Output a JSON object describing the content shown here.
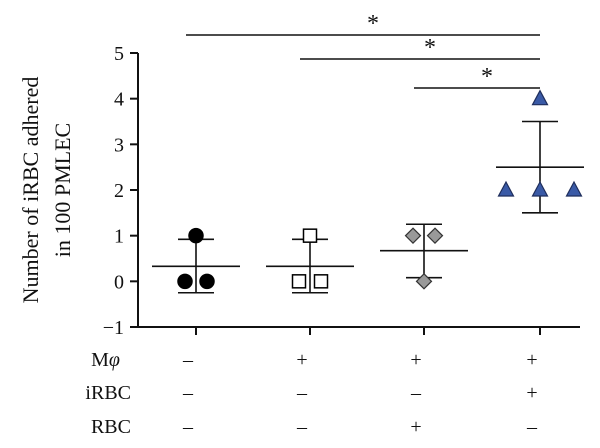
{
  "chart_data": {
    "type": "scatter",
    "ylabel_lines": [
      "Number of iRBC adhered",
      "in 100 PMLEC"
    ],
    "ylim": [
      -1,
      5
    ],
    "yticks": [
      "−1",
      "0",
      "1",
      "2",
      "3",
      "4",
      "5"
    ],
    "groups": [
      {
        "marker": "circle",
        "fill": "#000000",
        "points": [
          1,
          0,
          0
        ],
        "mean": 0.33,
        "error_low": -0.25,
        "error_high": 0.92
      },
      {
        "marker": "square",
        "fill": "#ffffff",
        "points": [
          1,
          0,
          0
        ],
        "mean": 0.33,
        "error_low": -0.25,
        "error_high": 0.92
      },
      {
        "marker": "diamond",
        "fill": "#999999",
        "points": [
          1,
          1,
          0
        ],
        "mean": 0.67,
        "error_low": 0.08,
        "error_high": 1.25
      },
      {
        "marker": "triangle",
        "fill": "#3a5aa6",
        "points": [
          4,
          2,
          2,
          2
        ],
        "mean": 2.5,
        "error_low": 1.5,
        "error_high": 3.5
      }
    ],
    "significance": [
      {
        "from": 0,
        "to": 3,
        "label": "*"
      },
      {
        "from": 1,
        "to": 3,
        "label": "*"
      },
      {
        "from": 2,
        "to": 3,
        "label": "*"
      }
    ],
    "conditions": [
      {
        "label": "Mφ",
        "values": [
          "–",
          "+",
          "+",
          "+"
        ]
      },
      {
        "label": "iRBC",
        "values": [
          "–",
          "–",
          "–",
          "+"
        ]
      },
      {
        "label": "RBC",
        "values": [
          "–",
          "–",
          "+",
          "–"
        ]
      }
    ]
  }
}
